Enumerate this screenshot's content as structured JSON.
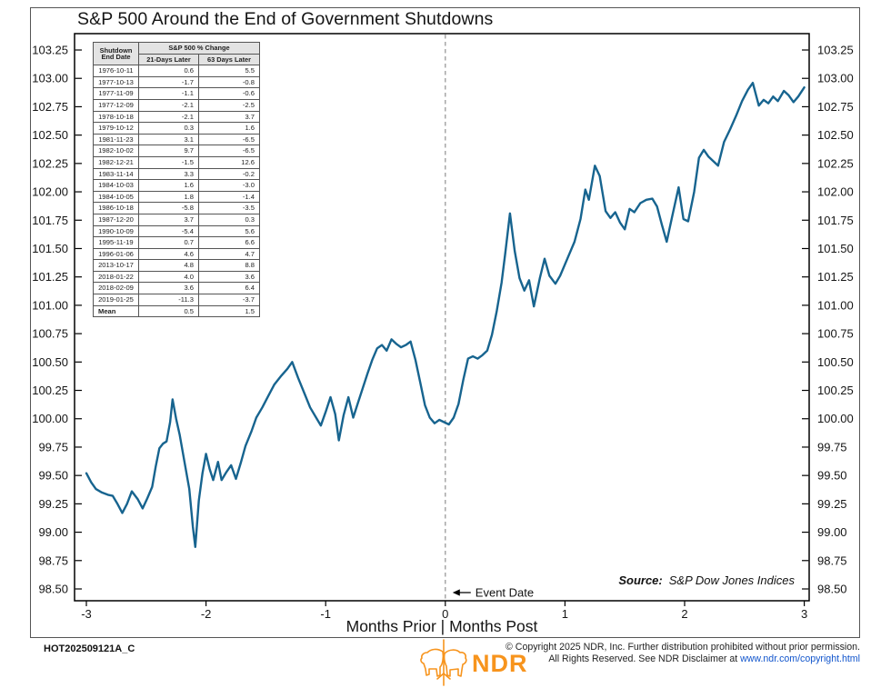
{
  "title": "S&P 500 Around the End of Government Shutdowns",
  "table": {
    "col1_header": "Shutdown\nEnd Date",
    "span_header": "S&P 500 % Change",
    "sub_headers": [
      "21-Days Later",
      "63 Days Later"
    ],
    "rows": [
      [
        "1976-10-11",
        "0.6",
        "5.5"
      ],
      [
        "1977-10-13",
        "-1.7",
        "-0.8"
      ],
      [
        "1977-11-09",
        "-1.1",
        "-0.6"
      ],
      [
        "1977-12-09",
        "-2.1",
        "-2.5"
      ],
      [
        "1978-10-18",
        "-2.1",
        "3.7"
      ],
      [
        "1979-10-12",
        "0.3",
        "1.6"
      ],
      [
        "1981-11-23",
        "3.1",
        "-6.5"
      ],
      [
        "1982-10-02",
        "9.7",
        "-6.5"
      ],
      [
        "1982-12-21",
        "-1.5",
        "12.6"
      ],
      [
        "1983-11-14",
        "3.3",
        "-0.2"
      ],
      [
        "1984-10-03",
        "1.6",
        "-3.0"
      ],
      [
        "1984-10-05",
        "1.8",
        "-1.4"
      ],
      [
        "1986-10-18",
        "-5.8",
        "-3.5"
      ],
      [
        "1987-12-20",
        "3.7",
        "0.3"
      ],
      [
        "1990-10-09",
        "-5.4",
        "5.6"
      ],
      [
        "1995-11-19",
        "0.7",
        "6.6"
      ],
      [
        "1996-01-06",
        "4.6",
        "4.7"
      ],
      [
        "2013-10-17",
        "4.8",
        "8.8"
      ],
      [
        "2018-01-22",
        "4.0",
        "3.6"
      ],
      [
        "2018-02-09",
        "3.6",
        "6.4"
      ],
      [
        "2019-01-25",
        "-11.3",
        "-3.7"
      ]
    ],
    "mean_row": [
      "Mean",
      "0.5",
      "1.5"
    ]
  },
  "chart_data": {
    "type": "line",
    "title": "S&P 500 Around the End of Government Shutdowns",
    "xlabel": "Months Prior | Months Post",
    "ylabel": "",
    "xlim": [
      -3,
      3
    ],
    "ylim": [
      98.5,
      103.25
    ],
    "grid": false,
    "x_ticks": [
      -3,
      -2,
      -1,
      0,
      1,
      2,
      3
    ],
    "y_ticks": [
      98.5,
      98.75,
      99.0,
      99.25,
      99.5,
      99.75,
      100.0,
      100.25,
      100.5,
      100.75,
      101.0,
      101.25,
      101.5,
      101.75,
      102.0,
      102.25,
      102.5,
      102.75,
      103.0,
      103.25
    ],
    "event_line_x": 0,
    "annotation": "Event Date",
    "source_label": "Source:",
    "source_text": "S&P Dow Jones Indices",
    "colors": {
      "line": "#17648F",
      "event_line": "#999999"
    },
    "series": [
      {
        "name": "S&P 500",
        "color": "#17648F",
        "points": [
          [
            -3.0,
            99.52
          ],
          [
            -2.96,
            99.44
          ],
          [
            -2.92,
            99.38
          ],
          [
            -2.87,
            99.35
          ],
          [
            -2.82,
            99.33
          ],
          [
            -2.78,
            99.32
          ],
          [
            -2.74,
            99.25
          ],
          [
            -2.7,
            99.17
          ],
          [
            -2.66,
            99.25
          ],
          [
            -2.62,
            99.36
          ],
          [
            -2.57,
            99.29
          ],
          [
            -2.53,
            99.21
          ],
          [
            -2.49,
            99.3
          ],
          [
            -2.45,
            99.4
          ],
          [
            -2.42,
            99.58
          ],
          [
            -2.39,
            99.74
          ],
          [
            -2.36,
            99.78
          ],
          [
            -2.33,
            99.8
          ],
          [
            -2.3,
            99.97
          ],
          [
            -2.28,
            100.17
          ],
          [
            -2.25,
            100.0
          ],
          [
            -2.22,
            99.86
          ],
          [
            -2.18,
            99.62
          ],
          [
            -2.14,
            99.38
          ],
          [
            -2.11,
            99.05
          ],
          [
            -2.09,
            98.87
          ],
          [
            -2.06,
            99.28
          ],
          [
            -2.03,
            99.52
          ],
          [
            -2.0,
            99.69
          ],
          [
            -1.97,
            99.56
          ],
          [
            -1.94,
            99.46
          ],
          [
            -1.9,
            99.62
          ],
          [
            -1.87,
            99.46
          ],
          [
            -1.83,
            99.53
          ],
          [
            -1.79,
            99.59
          ],
          [
            -1.75,
            99.47
          ],
          [
            -1.71,
            99.61
          ],
          [
            -1.67,
            99.76
          ],
          [
            -1.62,
            99.89
          ],
          [
            -1.58,
            100.01
          ],
          [
            -1.53,
            100.1
          ],
          [
            -1.48,
            100.2
          ],
          [
            -1.43,
            100.3
          ],
          [
            -1.37,
            100.38
          ],
          [
            -1.32,
            100.44
          ],
          [
            -1.28,
            100.5
          ],
          [
            -1.23,
            100.36
          ],
          [
            -1.18,
            100.23
          ],
          [
            -1.13,
            100.1
          ],
          [
            -1.08,
            100.01
          ],
          [
            -1.04,
            99.94
          ],
          [
            -1.0,
            100.06
          ],
          [
            -0.96,
            100.19
          ],
          [
            -0.92,
            100.04
          ],
          [
            -0.89,
            99.81
          ],
          [
            -0.85,
            100.03
          ],
          [
            -0.81,
            100.19
          ],
          [
            -0.77,
            100.01
          ],
          [
            -0.73,
            100.14
          ],
          [
            -0.69,
            100.27
          ],
          [
            -0.65,
            100.4
          ],
          [
            -0.61,
            100.52
          ],
          [
            -0.57,
            100.62
          ],
          [
            -0.53,
            100.65
          ],
          [
            -0.49,
            100.6
          ],
          [
            -0.45,
            100.7
          ],
          [
            -0.41,
            100.66
          ],
          [
            -0.37,
            100.63
          ],
          [
            -0.33,
            100.65
          ],
          [
            -0.29,
            100.68
          ],
          [
            -0.25,
            100.52
          ],
          [
            -0.21,
            100.32
          ],
          [
            -0.17,
            100.12
          ],
          [
            -0.13,
            100.01
          ],
          [
            -0.09,
            99.96
          ],
          [
            -0.05,
            99.99
          ],
          [
            -0.01,
            99.97
          ],
          [
            0.03,
            99.95
          ],
          [
            0.07,
            100.01
          ],
          [
            0.11,
            100.13
          ],
          [
            0.15,
            100.34
          ],
          [
            0.19,
            100.53
          ],
          [
            0.23,
            100.55
          ],
          [
            0.27,
            100.53
          ],
          [
            0.31,
            100.56
          ],
          [
            0.35,
            100.6
          ],
          [
            0.39,
            100.74
          ],
          [
            0.43,
            100.95
          ],
          [
            0.47,
            101.2
          ],
          [
            0.5,
            101.45
          ],
          [
            0.54,
            101.81
          ],
          [
            0.58,
            101.48
          ],
          [
            0.62,
            101.24
          ],
          [
            0.66,
            101.13
          ],
          [
            0.7,
            101.22
          ],
          [
            0.74,
            100.99
          ],
          [
            0.79,
            101.24
          ],
          [
            0.83,
            101.41
          ],
          [
            0.87,
            101.26
          ],
          [
            0.92,
            101.19
          ],
          [
            0.96,
            101.26
          ],
          [
            1.02,
            101.41
          ],
          [
            1.08,
            101.56
          ],
          [
            1.13,
            101.76
          ],
          [
            1.17,
            102.02
          ],
          [
            1.2,
            101.93
          ],
          [
            1.25,
            102.23
          ],
          [
            1.29,
            102.14
          ],
          [
            1.34,
            101.83
          ],
          [
            1.38,
            101.77
          ],
          [
            1.42,
            101.82
          ],
          [
            1.46,
            101.73
          ],
          [
            1.5,
            101.67
          ],
          [
            1.54,
            101.85
          ],
          [
            1.58,
            101.82
          ],
          [
            1.63,
            101.9
          ],
          [
            1.68,
            101.93
          ],
          [
            1.73,
            101.94
          ],
          [
            1.77,
            101.87
          ],
          [
            1.81,
            101.71
          ],
          [
            1.85,
            101.56
          ],
          [
            1.9,
            101.8
          ],
          [
            1.95,
            102.04
          ],
          [
            1.99,
            101.76
          ],
          [
            2.03,
            101.74
          ],
          [
            2.08,
            102.0
          ],
          [
            2.12,
            102.3
          ],
          [
            2.16,
            102.37
          ],
          [
            2.2,
            102.31
          ],
          [
            2.24,
            102.27
          ],
          [
            2.28,
            102.23
          ],
          [
            2.33,
            102.44
          ],
          [
            2.38,
            102.55
          ],
          [
            2.43,
            102.67
          ],
          [
            2.48,
            102.8
          ],
          [
            2.53,
            102.9
          ],
          [
            2.57,
            102.96
          ],
          [
            2.62,
            102.76
          ],
          [
            2.66,
            102.81
          ],
          [
            2.7,
            102.78
          ],
          [
            2.74,
            102.84
          ],
          [
            2.78,
            102.8
          ],
          [
            2.83,
            102.89
          ],
          [
            2.87,
            102.85
          ],
          [
            2.91,
            102.79
          ],
          [
            2.95,
            102.84
          ],
          [
            3.0,
            102.92
          ]
        ]
      }
    ]
  },
  "footer": {
    "code": "HOT202509121A_C",
    "logo_text": "NDR",
    "logo_color": "#F7941D",
    "copyright_line1": "© Copyright 2025 NDR, Inc. Further distribution prohibited without prior permission.",
    "copyright_line2_prefix": "All Rights Reserved. See NDR Disclaimer at ",
    "copyright_link": "www.ndr.com/copyright.html",
    "link_color": "#1155CC"
  }
}
